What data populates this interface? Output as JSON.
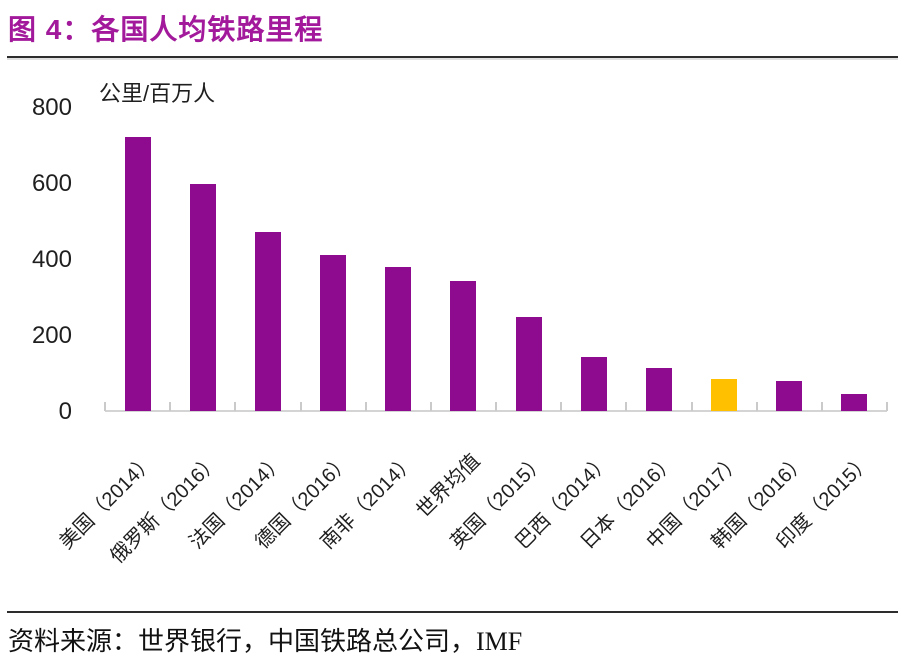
{
  "figure": {
    "title": "图 4：各国人均铁路里程",
    "source": "资料来源：世界银行，中国铁路总公司，IMF"
  },
  "colors": {
    "title_color": "#A21A9B",
    "bar_color": "#8E0A8E",
    "highlight_color": "#FFC000",
    "axis_color": "#D4D4D4",
    "tick_color": "#CACACA",
    "text_color": "#1F1F1F",
    "rule_color": "#2D2D2D"
  },
  "chart_data": {
    "type": "bar",
    "title": "各国人均铁路里程",
    "unit_label": "公里/百万人",
    "ylabel": "公里/百万人",
    "xlabel": "",
    "categories": [
      "美国（2014）",
      "俄罗斯（2016）",
      "法国（2014）",
      "德国（2016）",
      "南非（2014）",
      "世界均值",
      "英国（2015）",
      "巴西（2014）",
      "日本（2016）",
      "中国（2017）",
      "韩国（2016）",
      "印度（2015）"
    ],
    "values": [
      720,
      597,
      470,
      410,
      378,
      341,
      248,
      143,
      112,
      85,
      78,
      45
    ],
    "highlight_index": 9,
    "highlight_category": "中国（2017）",
    "ylim": [
      0,
      800
    ],
    "yticks": [
      0,
      200,
      400,
      600,
      800
    ],
    "grid": false,
    "legend": false,
    "bar_color": "#8E0A8E",
    "highlight_color": "#FFC000"
  }
}
